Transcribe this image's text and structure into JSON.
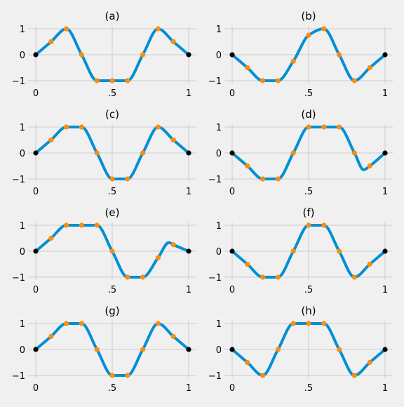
{
  "chart_data": [
    {
      "type": "line",
      "title": "(a)",
      "xlim": [
        0,
        1
      ],
      "ylim": [
        -1.1,
        1.1
      ],
      "xticks": [
        0,
        0.5,
        1
      ],
      "xtick_labels": [
        "0",
        ".5",
        "1"
      ],
      "yticks": [
        -1,
        0,
        1
      ],
      "ytick_labels": [
        "−1",
        "0",
        "1"
      ],
      "grid": true,
      "line_color": "#008fd5",
      "marker_color": "#fc8d0c",
      "endpoint_color": "#000000",
      "points": [
        {
          "x": 0,
          "y": 0
        },
        {
          "x": 0.1,
          "y": 0.5
        },
        {
          "x": 0.2,
          "y": 1
        },
        {
          "x": 0.3,
          "y": 0
        },
        {
          "x": 0.4,
          "y": -1
        },
        {
          "x": 0.5,
          "y": -1
        },
        {
          "x": 0.6,
          "y": -1
        },
        {
          "x": 0.7,
          "y": 0
        },
        {
          "x": 0.8,
          "y": 1
        },
        {
          "x": 0.9,
          "y": 0.5
        },
        {
          "x": 1,
          "y": 0
        }
      ],
      "curve": [
        [
          0,
          0
        ],
        [
          0.1,
          0.5
        ],
        [
          0.2,
          1
        ],
        [
          0.3,
          0
        ],
        [
          0.4,
          -1
        ],
        [
          0.6,
          -1
        ],
        [
          0.7,
          0
        ],
        [
          0.8,
          1
        ],
        [
          0.9,
          0.5
        ],
        [
          1,
          0
        ]
      ]
    },
    {
      "type": "line",
      "title": "(b)",
      "xlim": [
        0,
        1
      ],
      "ylim": [
        -1.1,
        1.1
      ],
      "xticks": [
        0,
        0.5,
        1
      ],
      "xtick_labels": [
        "0",
        ".5",
        "1"
      ],
      "yticks": [
        -1,
        0,
        1
      ],
      "ytick_labels": [
        "−1",
        "0",
        "1"
      ],
      "grid": true,
      "line_color": "#008fd5",
      "marker_color": "#fc8d0c",
      "endpoint_color": "#000000",
      "points": [
        {
          "x": 0,
          "y": 0
        },
        {
          "x": 0.1,
          "y": -0.5
        },
        {
          "x": 0.2,
          "y": -1
        },
        {
          "x": 0.3,
          "y": -1
        },
        {
          "x": 0.4,
          "y": -0.25
        },
        {
          "x": 0.5,
          "y": 0.75
        },
        {
          "x": 0.6,
          "y": 1
        },
        {
          "x": 0.7,
          "y": 0
        },
        {
          "x": 0.8,
          "y": -1
        },
        {
          "x": 0.9,
          "y": -0.5
        },
        {
          "x": 1,
          "y": 0
        }
      ],
      "curve": [
        [
          0,
          0
        ],
        [
          0.1,
          -0.5
        ],
        [
          0.2,
          -1
        ],
        [
          0.3,
          -1
        ],
        [
          0.4,
          -0.25
        ],
        [
          0.5,
          0.75
        ],
        [
          0.6,
          1
        ],
        [
          0.7,
          0
        ],
        [
          0.8,
          -1
        ],
        [
          0.9,
          -0.5
        ],
        [
          1,
          0
        ]
      ]
    },
    {
      "type": "line",
      "title": "(c)",
      "xlim": [
        0,
        1
      ],
      "ylim": [
        -1.1,
        1.1
      ],
      "xticks": [
        0,
        0.5,
        1
      ],
      "xtick_labels": [
        "0",
        ".5",
        "1"
      ],
      "yticks": [
        -1,
        0,
        1
      ],
      "ytick_labels": [
        "−1",
        "0",
        "1"
      ],
      "grid": true,
      "line_color": "#008fd5",
      "marker_color": "#fc8d0c",
      "endpoint_color": "#000000",
      "points": [
        {
          "x": 0,
          "y": 0
        },
        {
          "x": 0.1,
          "y": 0.5
        },
        {
          "x": 0.2,
          "y": 1
        },
        {
          "x": 0.3,
          "y": 1
        },
        {
          "x": 0.4,
          "y": 0
        },
        {
          "x": 0.5,
          "y": -1
        },
        {
          "x": 0.6,
          "y": -1
        },
        {
          "x": 0.7,
          "y": 0
        },
        {
          "x": 0.8,
          "y": 1
        },
        {
          "x": 0.9,
          "y": 0.5
        },
        {
          "x": 1,
          "y": 0
        }
      ],
      "curve": [
        [
          0,
          0
        ],
        [
          0.1,
          0.5
        ],
        [
          0.2,
          1
        ],
        [
          0.3,
          1
        ],
        [
          0.4,
          0
        ],
        [
          0.5,
          -1
        ],
        [
          0.6,
          -1
        ],
        [
          0.7,
          0
        ],
        [
          0.8,
          1
        ],
        [
          0.9,
          0.5
        ],
        [
          1,
          0
        ]
      ]
    },
    {
      "type": "line",
      "title": "(d)",
      "xlim": [
        0,
        1
      ],
      "ylim": [
        -1.1,
        1.1
      ],
      "xticks": [
        0,
        0.5,
        1
      ],
      "xtick_labels": [
        "0",
        ".5",
        "1"
      ],
      "yticks": [
        -1,
        0,
        1
      ],
      "ytick_labels": [
        "−1",
        "0",
        "1"
      ],
      "grid": true,
      "line_color": "#008fd5",
      "marker_color": "#fc8d0c",
      "endpoint_color": "#000000",
      "points": [
        {
          "x": 0,
          "y": 0
        },
        {
          "x": 0.1,
          "y": -0.5
        },
        {
          "x": 0.2,
          "y": -1
        },
        {
          "x": 0.3,
          "y": -1
        },
        {
          "x": 0.4,
          "y": 0
        },
        {
          "x": 0.5,
          "y": 1
        },
        {
          "x": 0.6,
          "y": 1
        },
        {
          "x": 0.7,
          "y": 1
        },
        {
          "x": 0.8,
          "y": 0
        },
        {
          "x": 0.9,
          "y": -0.5
        },
        {
          "x": 1,
          "y": 0
        }
      ],
      "curve": [
        [
          0,
          0
        ],
        [
          0.1,
          -0.5
        ],
        [
          0.2,
          -1
        ],
        [
          0.3,
          -1
        ],
        [
          0.4,
          0
        ],
        [
          0.5,
          1
        ],
        [
          0.7,
          1
        ],
        [
          0.8,
          0
        ],
        [
          0.86,
          -0.65
        ],
        [
          0.9,
          -0.5
        ],
        [
          1,
          0
        ]
      ]
    },
    {
      "type": "line",
      "title": "(e)",
      "xlim": [
        0,
        1
      ],
      "ylim": [
        -1.1,
        1.1
      ],
      "xticks": [
        0,
        0.5,
        1
      ],
      "xtick_labels": [
        "0",
        ".5",
        "1"
      ],
      "yticks": [
        -1,
        0,
        1
      ],
      "ytick_labels": [
        "−1",
        "0",
        "1"
      ],
      "grid": true,
      "line_color": "#008fd5",
      "marker_color": "#fc8d0c",
      "endpoint_color": "#000000",
      "points": [
        {
          "x": 0,
          "y": 0
        },
        {
          "x": 0.1,
          "y": 0.5
        },
        {
          "x": 0.2,
          "y": 1
        },
        {
          "x": 0.3,
          "y": 1
        },
        {
          "x": 0.4,
          "y": 1
        },
        {
          "x": 0.5,
          "y": 0
        },
        {
          "x": 0.6,
          "y": -1
        },
        {
          "x": 0.7,
          "y": -1
        },
        {
          "x": 0.8,
          "y": -0.25
        },
        {
          "x": 0.9,
          "y": 0.25
        },
        {
          "x": 1,
          "y": 0
        }
      ],
      "curve": [
        [
          0,
          0
        ],
        [
          0.1,
          0.5
        ],
        [
          0.2,
          1
        ],
        [
          0.4,
          1
        ],
        [
          0.5,
          0
        ],
        [
          0.6,
          -1
        ],
        [
          0.7,
          -1
        ],
        [
          0.8,
          -0.25
        ],
        [
          0.87,
          0.33
        ],
        [
          0.9,
          0.25
        ],
        [
          1,
          0
        ]
      ]
    },
    {
      "type": "line",
      "title": "(f)",
      "xlim": [
        0,
        1
      ],
      "ylim": [
        -1.1,
        1.1
      ],
      "xticks": [
        0,
        0.5,
        1
      ],
      "xtick_labels": [
        "0",
        ".5",
        "1"
      ],
      "yticks": [
        -1,
        0,
        1
      ],
      "ytick_labels": [
        "−1",
        "0",
        "1"
      ],
      "grid": true,
      "line_color": "#008fd5",
      "marker_color": "#fc8d0c",
      "endpoint_color": "#000000",
      "points": [
        {
          "x": 0,
          "y": 0
        },
        {
          "x": 0.1,
          "y": -0.5
        },
        {
          "x": 0.2,
          "y": -1
        },
        {
          "x": 0.3,
          "y": -1
        },
        {
          "x": 0.4,
          "y": 0
        },
        {
          "x": 0.5,
          "y": 1
        },
        {
          "x": 0.6,
          "y": 1
        },
        {
          "x": 0.7,
          "y": 0
        },
        {
          "x": 0.8,
          "y": -1
        },
        {
          "x": 0.9,
          "y": -0.5
        },
        {
          "x": 1,
          "y": 0
        }
      ],
      "curve": [
        [
          0,
          0
        ],
        [
          0.1,
          -0.5
        ],
        [
          0.2,
          -1
        ],
        [
          0.3,
          -1
        ],
        [
          0.4,
          0
        ],
        [
          0.5,
          1
        ],
        [
          0.6,
          1
        ],
        [
          0.7,
          0
        ],
        [
          0.8,
          -1
        ],
        [
          0.9,
          -0.5
        ],
        [
          1,
          0
        ]
      ]
    },
    {
      "type": "line",
      "title": "(g)",
      "xlim": [
        0,
        1
      ],
      "ylim": [
        -1.1,
        1.1
      ],
      "xticks": [
        0,
        0.5,
        1
      ],
      "xtick_labels": [
        "0",
        ".5",
        "1"
      ],
      "yticks": [
        -1,
        0,
        1
      ],
      "ytick_labels": [
        "−1",
        "0",
        "1"
      ],
      "grid": true,
      "line_color": "#008fd5",
      "marker_color": "#fc8d0c",
      "endpoint_color": "#000000",
      "points": [
        {
          "x": 0,
          "y": 0
        },
        {
          "x": 0.1,
          "y": 0.5
        },
        {
          "x": 0.2,
          "y": 1
        },
        {
          "x": 0.3,
          "y": 1
        },
        {
          "x": 0.4,
          "y": 0
        },
        {
          "x": 0.5,
          "y": -1
        },
        {
          "x": 0.6,
          "y": -1
        },
        {
          "x": 0.7,
          "y": 0
        },
        {
          "x": 0.8,
          "y": 1
        },
        {
          "x": 0.9,
          "y": 0.5
        },
        {
          "x": 1,
          "y": 0
        }
      ],
      "curve": [
        [
          0,
          0
        ],
        [
          0.1,
          0.5
        ],
        [
          0.2,
          1
        ],
        [
          0.3,
          1
        ],
        [
          0.4,
          0
        ],
        [
          0.5,
          -1
        ],
        [
          0.6,
          -1
        ],
        [
          0.7,
          0
        ],
        [
          0.8,
          1
        ],
        [
          0.9,
          0.5
        ],
        [
          1,
          0
        ]
      ]
    },
    {
      "type": "line",
      "title": "(h)",
      "xlim": [
        0,
        1
      ],
      "ylim": [
        -1.1,
        1.1
      ],
      "xticks": [
        0,
        0.5,
        1
      ],
      "xtick_labels": [
        "0",
        ".5",
        "1"
      ],
      "yticks": [
        -1,
        0,
        1
      ],
      "ytick_labels": [
        "−1",
        "0",
        "1"
      ],
      "grid": true,
      "line_color": "#008fd5",
      "marker_color": "#fc8d0c",
      "endpoint_color": "#000000",
      "points": [
        {
          "x": 0,
          "y": 0
        },
        {
          "x": 0.1,
          "y": -0.5
        },
        {
          "x": 0.2,
          "y": -1
        },
        {
          "x": 0.3,
          "y": 0
        },
        {
          "x": 0.4,
          "y": 1
        },
        {
          "x": 0.5,
          "y": 1
        },
        {
          "x": 0.6,
          "y": 1
        },
        {
          "x": 0.7,
          "y": 0
        },
        {
          "x": 0.8,
          "y": -1
        },
        {
          "x": 0.9,
          "y": -0.5
        },
        {
          "x": 1,
          "y": 0
        }
      ],
      "curve": [
        [
          0,
          0
        ],
        [
          0.1,
          -0.5
        ],
        [
          0.2,
          -1
        ],
        [
          0.3,
          0
        ],
        [
          0.4,
          1
        ],
        [
          0.6,
          1
        ],
        [
          0.7,
          0
        ],
        [
          0.8,
          -1
        ],
        [
          0.9,
          -0.5
        ],
        [
          1,
          0
        ]
      ]
    }
  ]
}
